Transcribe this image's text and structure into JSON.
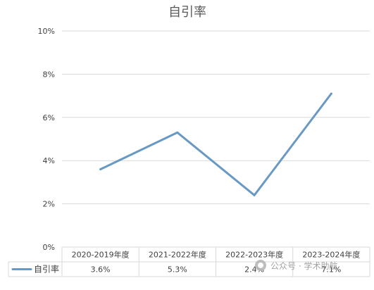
{
  "chart_data": {
    "type": "line",
    "title": "自引率",
    "categories": [
      "2020-2019年度",
      "2021-2022年度",
      "2022-2023年度",
      "2023-2024年度"
    ],
    "series": [
      {
        "name": "自引率",
        "values": [
          3.6,
          5.3,
          2.4,
          7.1
        ],
        "value_labels": [
          "3.6%",
          "5.3%",
          "2.4%",
          "7.1%"
        ],
        "color": "#6899c4"
      }
    ],
    "y_ticks": [
      "0%",
      "2%",
      "4%",
      "6%",
      "8%",
      "10%"
    ],
    "ylim": [
      0,
      10
    ],
    "grid": true,
    "legend": "data-table-left",
    "colors": {
      "gridline": "#d9d9d9",
      "text": "#404040"
    }
  },
  "watermark": {
    "text": "公众号 · 学术助航"
  }
}
